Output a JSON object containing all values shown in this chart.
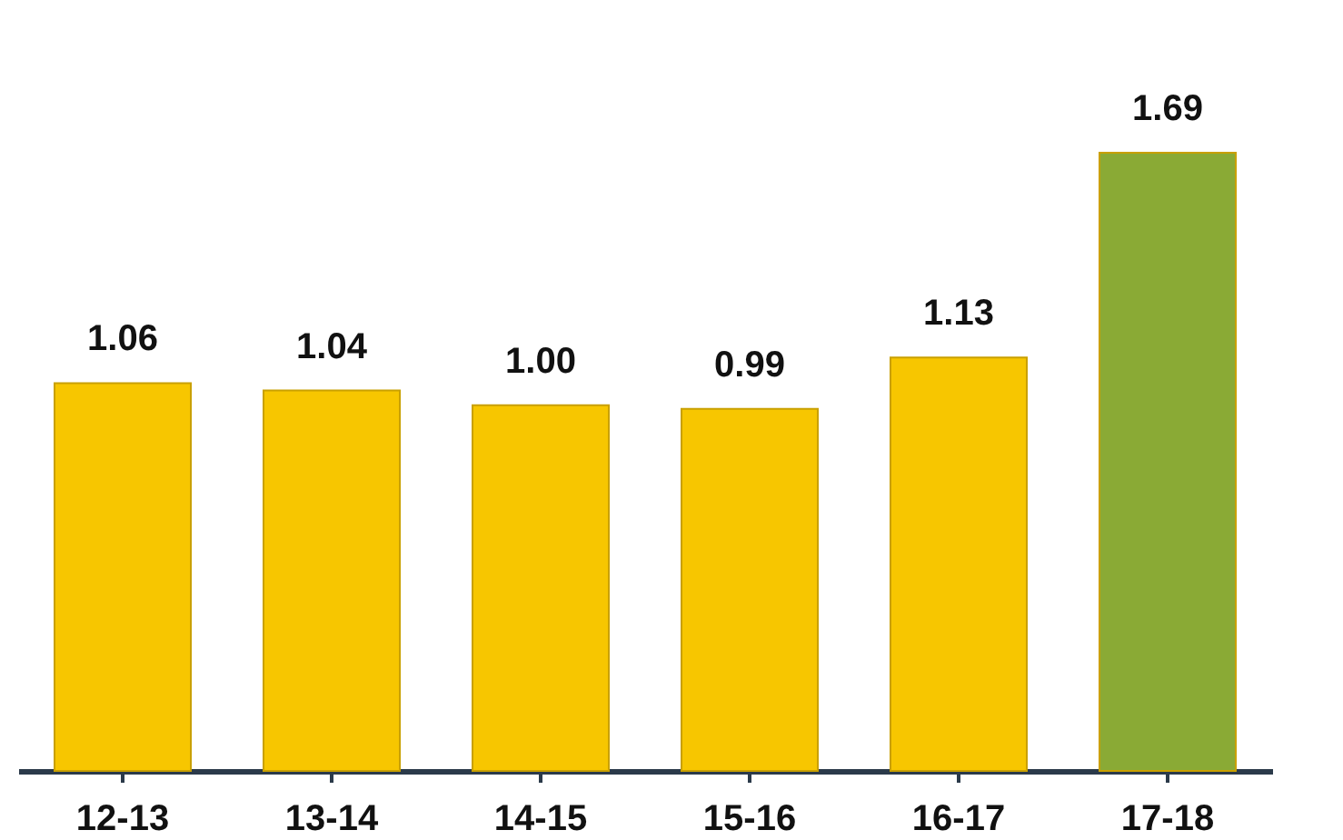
{
  "chart_data": {
    "type": "bar",
    "categories": [
      "12-13",
      "13-14",
      "14-15",
      "15-16",
      "16-17",
      "17-18"
    ],
    "values": [
      1.06,
      1.04,
      1.0,
      0.99,
      1.13,
      1.69
    ],
    "colors": [
      "#f7c600",
      "#f7c600",
      "#f7c600",
      "#f7c600",
      "#f7c600",
      "#8aaa35"
    ],
    "value_labels": [
      "1.06",
      "1.04",
      "1.00",
      "0.99",
      "1.13",
      "1.69"
    ],
    "grid": false
  }
}
